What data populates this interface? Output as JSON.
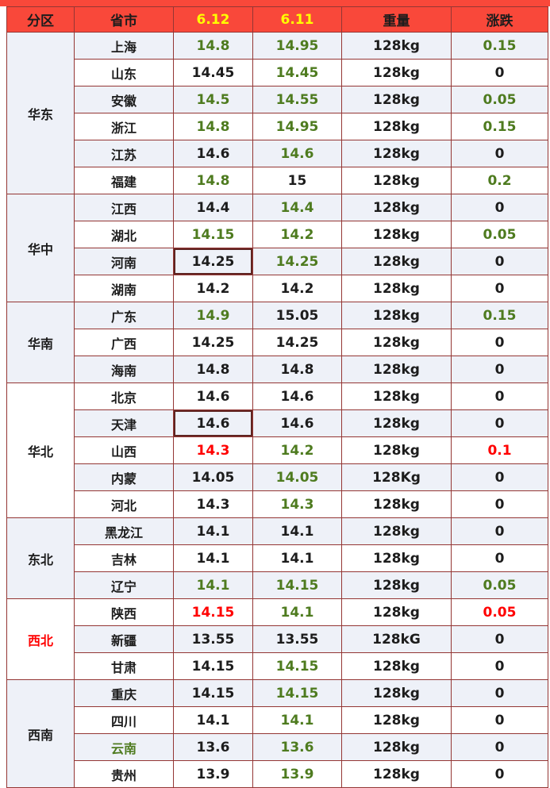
{
  "colors": {
    "header_bg": "#f9483a",
    "header_yellow": "#ffff00",
    "border": "#943634",
    "row_alt_bg": "#eef1f8",
    "green": "#4e7b1f",
    "red": "#ff0000",
    "text": "#1c1c1c",
    "box_border": "#5f2421"
  },
  "header": {
    "columns": [
      {
        "label": "分区",
        "color": "#1c1c1c"
      },
      {
        "label": "省市",
        "color": "#1c1c1c"
      },
      {
        "label": "6.12",
        "color": "#ffff00"
      },
      {
        "label": "6.11",
        "color": "#ffff00"
      },
      {
        "label": "重量",
        "color": "#1c1c1c"
      },
      {
        "label": "涨跌",
        "color": "#1c1c1c"
      }
    ]
  },
  "chart_data": {
    "type": "table",
    "columns": [
      "分区",
      "省市",
      "6.12",
      "6.11",
      "重量",
      "涨跌"
    ],
    "regions": [
      {
        "name": "华东",
        "name_color": "black",
        "rows": [
          {
            "province": "上海",
            "province_color": "black",
            "d612": "14.8",
            "d612_color": "green",
            "d612_boxed": false,
            "d611": "14.95",
            "d611_color": "green",
            "weight": "128kg",
            "change": "0.15",
            "change_color": "green"
          },
          {
            "province": "山东",
            "province_color": "black",
            "d612": "14.45",
            "d612_color": "black",
            "d612_boxed": false,
            "d611": "14.45",
            "d611_color": "green",
            "weight": "128kg",
            "change": "0",
            "change_color": "black"
          },
          {
            "province": "安徽",
            "province_color": "black",
            "d612": "14.5",
            "d612_color": "green",
            "d612_boxed": false,
            "d611": "14.55",
            "d611_color": "green",
            "weight": "128kg",
            "change": "0.05",
            "change_color": "green"
          },
          {
            "province": "浙江",
            "province_color": "black",
            "d612": "14.8",
            "d612_color": "green",
            "d612_boxed": false,
            "d611": "14.95",
            "d611_color": "green",
            "weight": "128kg",
            "change": "0.15",
            "change_color": "green"
          },
          {
            "province": "江苏",
            "province_color": "black",
            "d612": "14.6",
            "d612_color": "black",
            "d612_boxed": false,
            "d611": "14.6",
            "d611_color": "green",
            "weight": "128kg",
            "change": "0",
            "change_color": "black"
          },
          {
            "province": "福建",
            "province_color": "black",
            "d612": "14.8",
            "d612_color": "green",
            "d612_boxed": false,
            "d611": "15",
            "d611_color": "black",
            "weight": "128kg",
            "change": "0.2",
            "change_color": "green"
          }
        ]
      },
      {
        "name": "华中",
        "name_color": "black",
        "rows": [
          {
            "province": "江西",
            "province_color": "black",
            "d612": "14.4",
            "d612_color": "black",
            "d612_boxed": false,
            "d611": "14.4",
            "d611_color": "green",
            "weight": "128kg",
            "change": "0",
            "change_color": "black"
          },
          {
            "province": "湖北",
            "province_color": "black",
            "d612": "14.15",
            "d612_color": "green",
            "d612_boxed": false,
            "d611": "14.2",
            "d611_color": "green",
            "weight": "128kg",
            "change": "0.05",
            "change_color": "green"
          },
          {
            "province": "河南",
            "province_color": "black",
            "d612": "14.25",
            "d612_color": "black",
            "d612_boxed": true,
            "d611": "14.25",
            "d611_color": "green",
            "weight": "128kg",
            "change": "0",
            "change_color": "black"
          },
          {
            "province": "湖南",
            "province_color": "black",
            "d612": "14.2",
            "d612_color": "black",
            "d612_boxed": false,
            "d611": "14.2",
            "d611_color": "black",
            "weight": "128kg",
            "change": "0",
            "change_color": "black"
          }
        ]
      },
      {
        "name": "华南",
        "name_color": "black",
        "rows": [
          {
            "province": "广东",
            "province_color": "black",
            "d612": "14.9",
            "d612_color": "green",
            "d612_boxed": false,
            "d611": "15.05",
            "d611_color": "black",
            "weight": "128kg",
            "change": "0.15",
            "change_color": "green"
          },
          {
            "province": "广西",
            "province_color": "black",
            "d612": "14.25",
            "d612_color": "black",
            "d612_boxed": false,
            "d611": "14.25",
            "d611_color": "black",
            "weight": "128kg",
            "change": "0",
            "change_color": "black"
          },
          {
            "province": "海南",
            "province_color": "black",
            "d612": "14.8",
            "d612_color": "black",
            "d612_boxed": false,
            "d611": "14.8",
            "d611_color": "black",
            "weight": "128kg",
            "change": "0",
            "change_color": "black"
          }
        ]
      },
      {
        "name": "华北",
        "name_color": "black",
        "rows": [
          {
            "province": "北京",
            "province_color": "black",
            "d612": "14.6",
            "d612_color": "black",
            "d612_boxed": false,
            "d611": "14.6",
            "d611_color": "black",
            "weight": "128kg",
            "change": "0",
            "change_color": "black"
          },
          {
            "province": "天津",
            "province_color": "black",
            "d612": "14.6",
            "d612_color": "black",
            "d612_boxed": true,
            "d611": "14.6",
            "d611_color": "black",
            "weight": "128kg",
            "change": "0",
            "change_color": "black"
          },
          {
            "province": "山西",
            "province_color": "black",
            "d612": "14.3",
            "d612_color": "red",
            "d612_boxed": false,
            "d611": "14.2",
            "d611_color": "green",
            "weight": "128kg",
            "change": "0.1",
            "change_color": "red"
          },
          {
            "province": "内蒙",
            "province_color": "black",
            "d612": "14.05",
            "d612_color": "black",
            "d612_boxed": false,
            "d611": "14.05",
            "d611_color": "green",
            "weight": "128Kg",
            "change": "0",
            "change_color": "black"
          },
          {
            "province": "河北",
            "province_color": "black",
            "d612": "14.3",
            "d612_color": "black",
            "d612_boxed": false,
            "d611": "14.3",
            "d611_color": "green",
            "weight": "128kg",
            "change": "0",
            "change_color": "black"
          }
        ]
      },
      {
        "name": "东北",
        "name_color": "black",
        "rows": [
          {
            "province": "黑龙江",
            "province_color": "black",
            "d612": "14.1",
            "d612_color": "black",
            "d612_boxed": false,
            "d611": "14.1",
            "d611_color": "black",
            "weight": "128kg",
            "change": "0",
            "change_color": "black"
          },
          {
            "province": "吉林",
            "province_color": "black",
            "d612": "14.1",
            "d612_color": "black",
            "d612_boxed": false,
            "d611": "14.1",
            "d611_color": "black",
            "weight": "128kg",
            "change": "0",
            "change_color": "black"
          },
          {
            "province": "辽宁",
            "province_color": "black",
            "d612": "14.1",
            "d612_color": "green",
            "d612_boxed": false,
            "d611": "14.15",
            "d611_color": "green",
            "weight": "128kg",
            "change": "0.05",
            "change_color": "green"
          }
        ]
      },
      {
        "name": "西北",
        "name_color": "red",
        "rows": [
          {
            "province": "陕西",
            "province_color": "black",
            "d612": "14.15",
            "d612_color": "red",
            "d612_boxed": false,
            "d611": "14.1",
            "d611_color": "green",
            "weight": "128kg",
            "change": "0.05",
            "change_color": "red"
          },
          {
            "province": "新疆",
            "province_color": "black",
            "d612": "13.55",
            "d612_color": "black",
            "d612_boxed": false,
            "d611": "13.55",
            "d611_color": "black",
            "weight": "128kG",
            "change": "0",
            "change_color": "black"
          },
          {
            "province": "甘肃",
            "province_color": "black",
            "d612": "14.15",
            "d612_color": "black",
            "d612_boxed": false,
            "d611": "14.15",
            "d611_color": "green",
            "weight": "128kg",
            "change": "0",
            "change_color": "black"
          }
        ]
      },
      {
        "name": "西南",
        "name_color": "black",
        "rows": [
          {
            "province": "重庆",
            "province_color": "black",
            "d612": "14.15",
            "d612_color": "black",
            "d612_boxed": false,
            "d611": "14.15",
            "d611_color": "green",
            "weight": "128kg",
            "change": "0",
            "change_color": "black"
          },
          {
            "province": "四川",
            "province_color": "black",
            "d612": "14.1",
            "d612_color": "black",
            "d612_boxed": false,
            "d611": "14.1",
            "d611_color": "green",
            "weight": "128kg",
            "change": "0",
            "change_color": "black"
          },
          {
            "province": "云南",
            "province_color": "green",
            "d612": "13.6",
            "d612_color": "black",
            "d612_boxed": false,
            "d611": "13.6",
            "d611_color": "green",
            "weight": "128kg",
            "change": "0",
            "change_color": "black"
          },
          {
            "province": "贵州",
            "province_color": "black",
            "d612": "13.9",
            "d612_color": "black",
            "d612_boxed": false,
            "d611": "13.9",
            "d611_color": "green",
            "weight": "128kg",
            "change": "0",
            "change_color": "black"
          }
        ]
      }
    ]
  }
}
